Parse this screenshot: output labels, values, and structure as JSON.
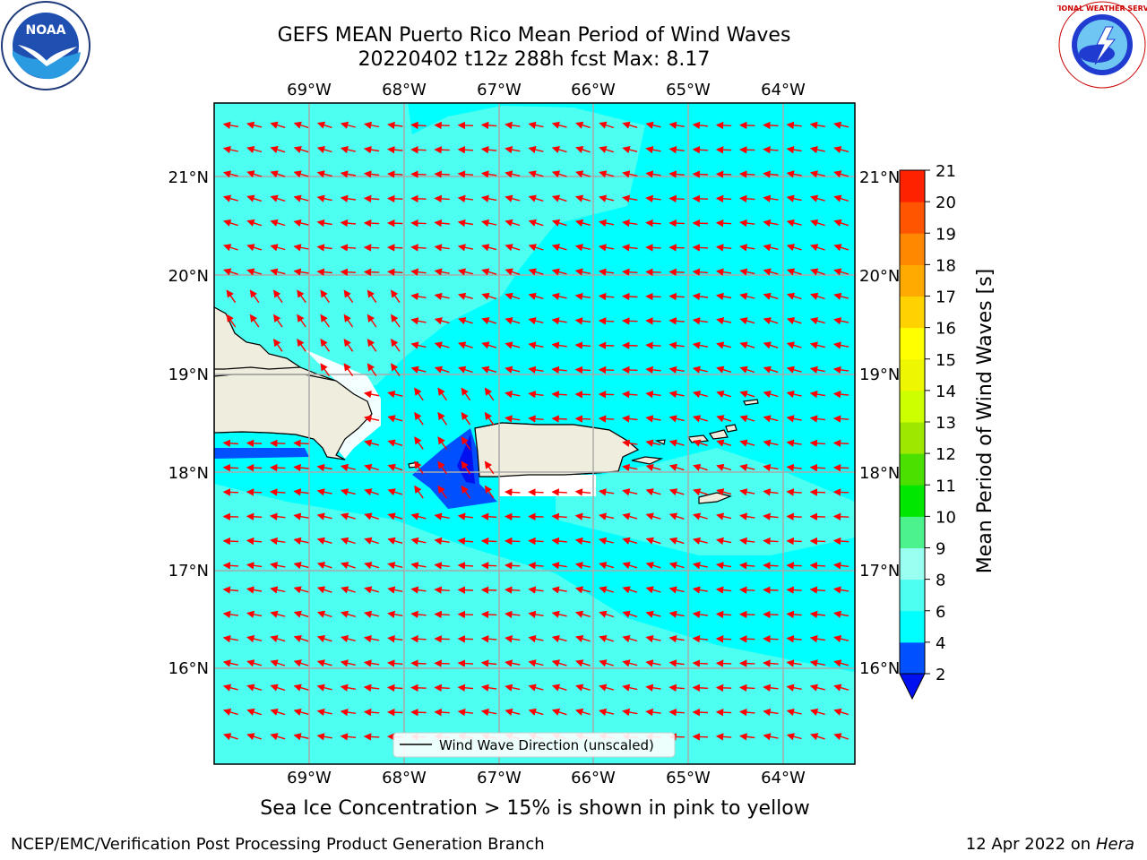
{
  "header": {
    "title_line1": "GEFS MEAN Puerto Rico Mean Period of Wind Waves",
    "title_line2": "20220402 t12z 288h fcst   Max: 8.17"
  },
  "logos": {
    "left": {
      "name": "noaa-logo",
      "text": "NOAA"
    },
    "right": {
      "name": "nws-logo",
      "text": "NATIONAL WEATHER SERVICE"
    }
  },
  "map": {
    "lon_labels": [
      "69°W",
      "68°W",
      "67°W",
      "66°W",
      "65°W",
      "64°W"
    ],
    "lat_labels": [
      "21°N",
      "20°N",
      "19°N",
      "18°N",
      "17°N",
      "16°N"
    ],
    "lon_range": [
      -70.0,
      -63.25
    ],
    "lat_range": [
      15.0,
      21.75
    ],
    "legend_label": "Wind Wave Direction (unscaled)",
    "arrow_color": "#ff0000",
    "land_color": "#efeddd"
  },
  "colorbar": {
    "label": "Mean Period of Wind Waves [s]",
    "ticks": [
      "2",
      "4",
      "6",
      "8",
      "9",
      "10",
      "11",
      "12",
      "13",
      "14",
      "15",
      "16",
      "17",
      "18",
      "19",
      "20",
      "21"
    ],
    "colors": [
      "#0050ff",
      "#00ffff",
      "#4cfff0",
      "#99fff0",
      "#4cf28c",
      "#00e800",
      "#4ce000",
      "#9ee800",
      "#ccff00",
      "#eef600",
      "#ffff00",
      "#ffd200",
      "#ffaa00",
      "#ff8800",
      "#ff5500",
      "#ff2200"
    ],
    "under_color": "#0010ee"
  },
  "footer": {
    "left": "NCEP/EMC/Verification Post Processing Product Generation Branch",
    "right_date": "12 Apr 2022 on",
    "right_host": "Hera",
    "ice_note": "Sea Ice Concentration > 15% is shown in pink to yellow"
  }
}
